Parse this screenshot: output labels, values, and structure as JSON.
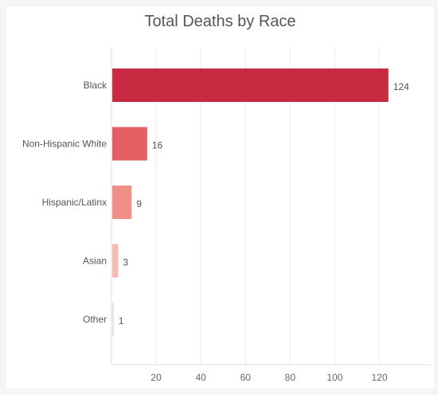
{
  "chart_data": {
    "type": "bar",
    "orientation": "horizontal",
    "title": "Total Deaths by Race",
    "categories": [
      "Black",
      "Non-Hispanic White",
      "Hispanic/Latinx",
      "Asian",
      "Other"
    ],
    "values": [
      124,
      16,
      9,
      3,
      1
    ],
    "colors": [
      "#c82a42",
      "#e56063",
      "#f08f86",
      "#f6bab1",
      "#f3ddd6"
    ],
    "xticks": [
      20,
      40,
      60,
      80,
      100,
      120
    ],
    "xlim": [
      0,
      143
    ],
    "grid": true,
    "data_labels": true
  }
}
